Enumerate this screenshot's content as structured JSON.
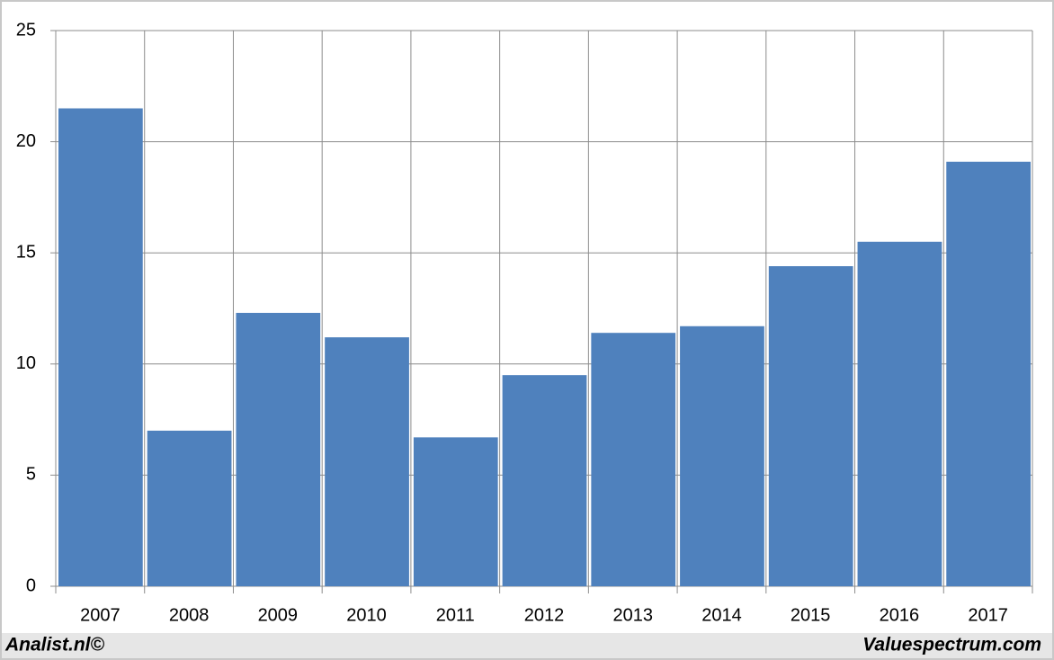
{
  "chart_data": {
    "type": "bar",
    "categories": [
      "2007",
      "2008",
      "2009",
      "2010",
      "2011",
      "2012",
      "2013",
      "2014",
      "2015",
      "2016",
      "2017"
    ],
    "values": [
      21.5,
      7.0,
      12.3,
      11.2,
      6.7,
      9.5,
      11.4,
      11.7,
      14.4,
      15.5,
      19.1
    ],
    "color": "#4f81bd",
    "ylim": [
      0,
      25
    ],
    "yticks": [
      0,
      5,
      10,
      15,
      20,
      25
    ],
    "grid": true
  },
  "footer": {
    "left": "Analist.nl©",
    "right": "Valuespectrum.com"
  }
}
